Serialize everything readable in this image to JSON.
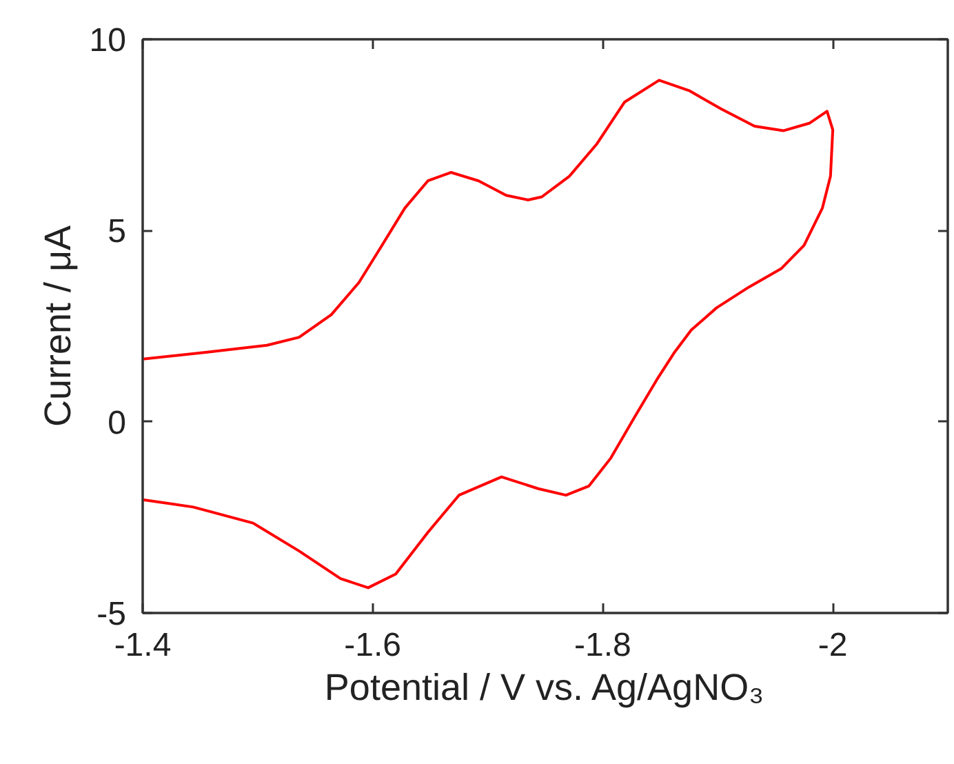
{
  "chart_data": {
    "type": "line",
    "xlabel": "Potential / V vs. Ag/AgNO₃",
    "ylabel": "Current / μA",
    "x": [
      -1.4,
      -1.456,
      -1.508,
      -1.536,
      -1.564,
      -1.588,
      -1.608,
      -1.628,
      -1.648,
      -1.668,
      -1.692,
      -1.716,
      -1.735,
      -1.747,
      -1.771,
      -1.795,
      -1.819,
      -1.849,
      -1.875,
      -1.903,
      -1.932,
      -1.957,
      -1.98,
      -1.995,
      -2.0,
      -1.998,
      -1.991,
      -1.975,
      -1.955,
      -1.927,
      -1.899,
      -1.877,
      -1.862,
      -1.847,
      -1.828,
      -1.807,
      -1.788,
      -1.768,
      -1.744,
      -1.712,
      -1.675,
      -1.648,
      -1.62,
      -1.596,
      -1.572,
      -1.536,
      -1.496,
      -1.444,
      -1.4
    ],
    "series": [
      {
        "color": "#ff0000",
        "values": [
          1.64,
          1.82,
          2.0,
          2.21,
          2.8,
          3.64,
          4.61,
          5.59,
          6.3,
          6.52,
          6.3,
          5.92,
          5.8,
          5.88,
          6.42,
          7.27,
          8.36,
          8.93,
          8.66,
          8.18,
          7.73,
          7.61,
          7.81,
          8.12,
          7.63,
          6.42,
          5.59,
          4.61,
          4.0,
          3.52,
          2.98,
          2.4,
          1.8,
          1.1,
          0.14,
          -0.95,
          -1.68,
          -1.92,
          -1.75,
          -1.44,
          -1.92,
          -2.89,
          -3.98,
          -4.34,
          -4.1,
          -3.38,
          -2.65,
          -2.23,
          -2.04
        ]
      }
    ],
    "xlim": [
      -1.4,
      -2.1
    ],
    "ylim": [
      -5,
      10
    ],
    "xticks": [
      -1.4,
      -1.6,
      -1.8,
      -2
    ],
    "yticks": [
      -5,
      0,
      5,
      10
    ],
    "grid": false,
    "marker": "none",
    "line_style": "solid"
  }
}
